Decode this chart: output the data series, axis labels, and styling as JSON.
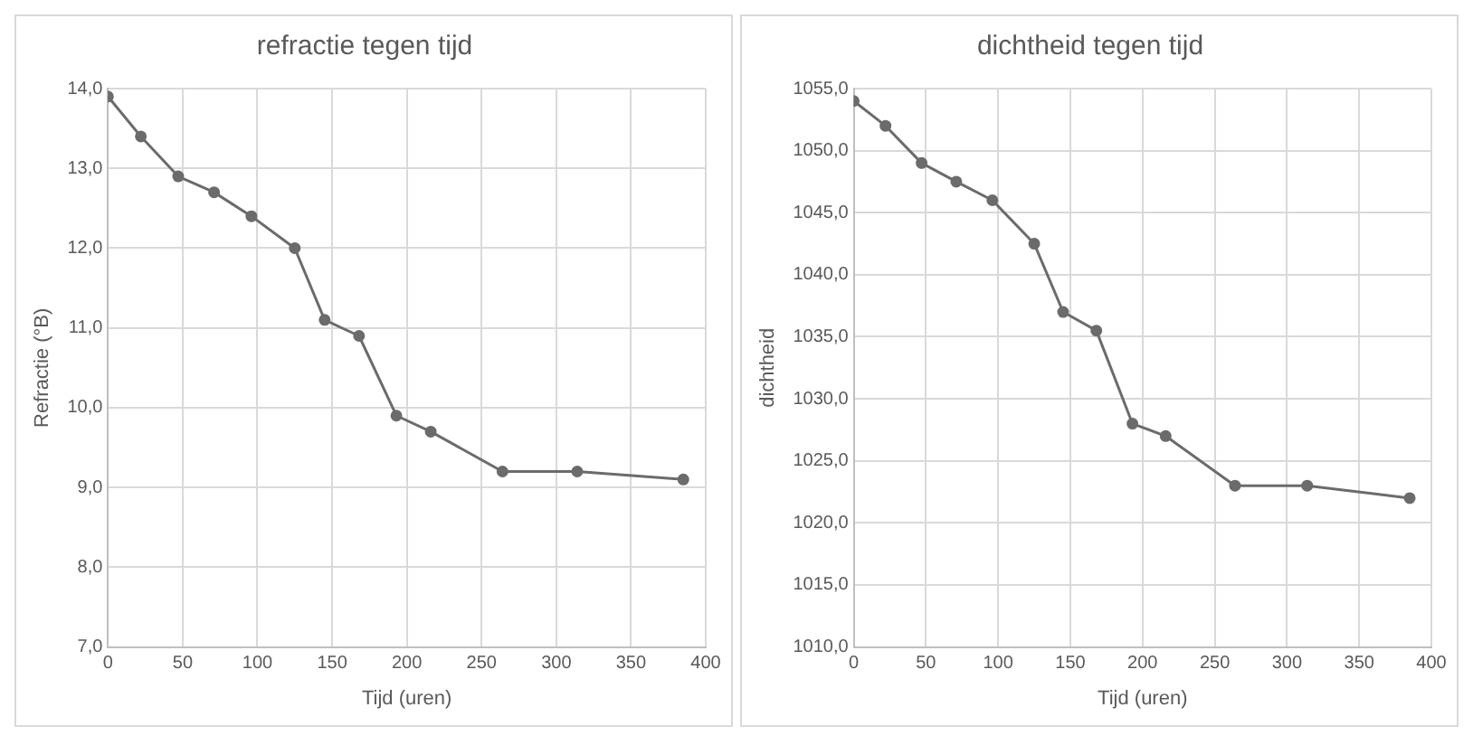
{
  "chart_data": [
    {
      "type": "line",
      "title": "refractie tegen tijd",
      "xlabel": "Tijd (uren)",
      "ylabel": "Refractie (°B)",
      "x": [
        0,
        22,
        47,
        71,
        96,
        125,
        145,
        168,
        193,
        216,
        264,
        314,
        385
      ],
      "series": [
        {
          "color": "#6b6b6b",
          "values": [
            13.9,
            13.4,
            12.9,
            12.7,
            12.4,
            12.0,
            11.1,
            10.9,
            9.9,
            9.7,
            9.2,
            9.2,
            9.1
          ]
        }
      ],
      "xlim": [
        0,
        400
      ],
      "xticks": [
        0,
        50,
        100,
        150,
        200,
        250,
        300,
        350,
        400
      ],
      "ylim": [
        7,
        14
      ],
      "yticks": [
        {
          "value": 7,
          "label": "7,0"
        },
        {
          "value": 8,
          "label": "8,0"
        },
        {
          "value": 9,
          "label": "9,0"
        },
        {
          "value": 10,
          "label": "10,0"
        },
        {
          "value": 11,
          "label": "11,0"
        },
        {
          "value": 12,
          "label": "12,0"
        },
        {
          "value": 13,
          "label": "13,0"
        },
        {
          "value": 14,
          "label": "14,0"
        }
      ],
      "grid": true,
      "marker": "circle",
      "legend": false
    },
    {
      "type": "line",
      "title": "dichtheid tegen tijd",
      "xlabel": "Tijd (uren)",
      "ylabel": "dichtheid",
      "x": [
        0,
        22,
        47,
        71,
        96,
        125,
        145,
        168,
        193,
        216,
        264,
        314,
        385
      ],
      "series": [
        {
          "color": "#6b6b6b",
          "values": [
            1054,
            1052,
            1049,
            1047.5,
            1046,
            1042.5,
            1037,
            1035.5,
            1028,
            1027,
            1023,
            1023,
            1022
          ]
        }
      ],
      "xlim": [
        0,
        400
      ],
      "xticks": [
        0,
        50,
        100,
        150,
        200,
        250,
        300,
        350,
        400
      ],
      "ylim": [
        1010,
        1055
      ],
      "yticks": [
        {
          "value": 1010,
          "label": "1010,0"
        },
        {
          "value": 1015,
          "label": "1015,0"
        },
        {
          "value": 1020,
          "label": "1020,0"
        },
        {
          "value": 1025,
          "label": "1025,0"
        },
        {
          "value": 1030,
          "label": "1030,0"
        },
        {
          "value": 1035,
          "label": "1035,0"
        },
        {
          "value": 1040,
          "label": "1040,0"
        },
        {
          "value": 1045,
          "label": "1045,0"
        },
        {
          "value": 1050,
          "label": "1050,0"
        },
        {
          "value": 1055,
          "label": "1055,0"
        }
      ],
      "grid": true,
      "marker": "circle",
      "legend": false
    }
  ]
}
